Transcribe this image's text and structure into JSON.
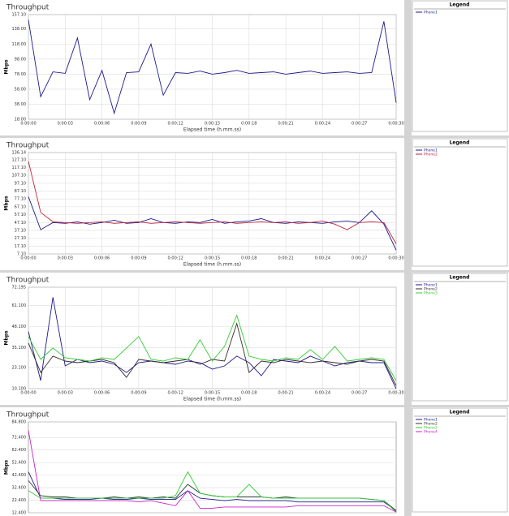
{
  "chart_data": [
    {
      "type": "line",
      "title": "Throughput",
      "ylabel": "Mbps",
      "xlabel": "Elapsed time (h.mm.ss)",
      "legend_title": "Legend",
      "grid": true,
      "x": [
        0,
        1,
        2,
        3,
        4,
        5,
        6,
        7,
        8,
        9,
        10,
        11,
        12,
        13,
        14,
        15,
        16,
        17,
        18,
        19,
        20,
        21,
        22,
        23,
        24,
        25,
        26,
        27,
        28,
        29,
        30
      ],
      "xlim": [
        0,
        30
      ],
      "xticks": [
        {
          "value": 0,
          "label": "0:00:00"
        },
        {
          "value": 3,
          "label": "0:00:03"
        },
        {
          "value": 6,
          "label": "0:00:06"
        },
        {
          "value": 9,
          "label": "0:00:09"
        },
        {
          "value": 12,
          "label": "0:00:12"
        },
        {
          "value": 15,
          "label": "0:00:15"
        },
        {
          "value": 18,
          "label": "0:00:18"
        },
        {
          "value": 21,
          "label": "0:00:21"
        },
        {
          "value": 24,
          "label": "0:00:24"
        },
        {
          "value": 27,
          "label": "0:00:27"
        },
        {
          "value": 30,
          "label": "0:00:30"
        }
      ],
      "ylim": [
        18,
        157.1
      ],
      "yticks": [
        {
          "value": 18,
          "label": "18.00"
        },
        {
          "value": 38,
          "label": "38.00"
        },
        {
          "value": 58,
          "label": "58.00"
        },
        {
          "value": 78,
          "label": "78.00"
        },
        {
          "value": 98,
          "label": "98.00"
        },
        {
          "value": 118,
          "label": "118.00"
        },
        {
          "value": 138,
          "label": "138.00"
        },
        {
          "value": 157.1,
          "label": "157.10"
        }
      ],
      "series": [
        {
          "name": "Phone1",
          "color": "#1a1a8c",
          "values": [
            150,
            48,
            81,
            79,
            126,
            44,
            83,
            26,
            80,
            81,
            118,
            50,
            80,
            79,
            82,
            78,
            80,
            83,
            79,
            80,
            81,
            78,
            80,
            82,
            79,
            80,
            81,
            79,
            80,
            148,
            40
          ]
        }
      ]
    },
    {
      "type": "line",
      "title": "Throughput",
      "ylabel": "Mbps",
      "xlabel": "Elapsed time (h.mm.ss)",
      "legend_title": "Legend",
      "grid": true,
      "x": [
        0,
        1,
        2,
        3,
        4,
        5,
        6,
        7,
        8,
        9,
        10,
        11,
        12,
        13,
        14,
        15,
        16,
        17,
        18,
        19,
        20,
        21,
        22,
        23,
        24,
        25,
        26,
        27,
        28,
        29,
        30
      ],
      "xlim": [
        0,
        30
      ],
      "xticks": [
        {
          "value": 0,
          "label": "0:00:00"
        },
        {
          "value": 3,
          "label": "0:00:03"
        },
        {
          "value": 6,
          "label": "0:00:06"
        },
        {
          "value": 9,
          "label": "0:00:09"
        },
        {
          "value": 12,
          "label": "0:00:12"
        },
        {
          "value": 15,
          "label": "0:00:15"
        },
        {
          "value": 18,
          "label": "0:00:18"
        },
        {
          "value": 21,
          "label": "0:00:21"
        },
        {
          "value": 24,
          "label": "0:00:24"
        },
        {
          "value": 27,
          "label": "0:00:27"
        },
        {
          "value": 30,
          "label": "0:00:30"
        }
      ],
      "ylim": [
        7.1,
        136.14
      ],
      "yticks": [
        {
          "value": 7.1,
          "label": "7.10"
        },
        {
          "value": 17.1,
          "label": "17.10"
        },
        {
          "value": 27.1,
          "label": "27.10"
        },
        {
          "value": 37.1,
          "label": "37.10"
        },
        {
          "value": 47.1,
          "label": "47.10"
        },
        {
          "value": 57.1,
          "label": "57.10"
        },
        {
          "value": 67.1,
          "label": "67.10"
        },
        {
          "value": 77.1,
          "label": "77.10"
        },
        {
          "value": 87.1,
          "label": "87.10"
        },
        {
          "value": 97.1,
          "label": "97.10"
        },
        {
          "value": 107.1,
          "label": "107.10"
        },
        {
          "value": 117.1,
          "label": "117.10"
        },
        {
          "value": 127.1,
          "label": "127.10"
        },
        {
          "value": 136.14,
          "label": "136.14"
        }
      ],
      "series": [
        {
          "name": "Phone1",
          "color": "#1a1a8c",
          "values": [
            80,
            38,
            47,
            46,
            48,
            45,
            47,
            50,
            46,
            47,
            52,
            47,
            46,
            48,
            47,
            51,
            46,
            48,
            49,
            52,
            47,
            46,
            48,
            47,
            46,
            48,
            49,
            47,
            62,
            45,
            12
          ]
        },
        {
          "name": "Phone2",
          "color": "#c0203a",
          "values": [
            125,
            60,
            48,
            47,
            46,
            47,
            48,
            46,
            47,
            48,
            46,
            47,
            48,
            47,
            46,
            47,
            48,
            46,
            47,
            48,
            47,
            48,
            46,
            47,
            49,
            45,
            38,
            47,
            48,
            47,
            20
          ]
        }
      ]
    },
    {
      "type": "line",
      "title": "Throughput",
      "ylabel": "Mbps",
      "xlabel": "Elapsed time (h.mm.ss)",
      "legend_title": "Legend",
      "grid": true,
      "x": [
        0,
        1,
        2,
        3,
        4,
        5,
        6,
        7,
        8,
        9,
        10,
        11,
        12,
        13,
        14,
        15,
        16,
        17,
        18,
        19,
        20,
        21,
        22,
        23,
        24,
        25,
        26,
        27,
        28,
        29,
        30
      ],
      "xlim": [
        0,
        30
      ],
      "xticks": [
        {
          "value": 0,
          "label": "0:00:00"
        },
        {
          "value": 3,
          "label": "0:00:03"
        },
        {
          "value": 6,
          "label": "0:00:06"
        },
        {
          "value": 9,
          "label": "0:00:09"
        },
        {
          "value": 12,
          "label": "0:00:12"
        },
        {
          "value": 15,
          "label": "0:00:15"
        },
        {
          "value": 18,
          "label": "0:00:18"
        },
        {
          "value": 21,
          "label": "0:00:21"
        },
        {
          "value": 24,
          "label": "0:00:24"
        },
        {
          "value": 27,
          "label": "0:00:27"
        },
        {
          "value": 30,
          "label": "0:00:30"
        }
      ],
      "ylim": [
        10.1,
        72.195
      ],
      "yticks": [
        {
          "value": 10.1,
          "label": "10.100"
        },
        {
          "value": 23.1,
          "label": "23.100"
        },
        {
          "value": 35.1,
          "label": "35.100"
        },
        {
          "value": 48.1,
          "label": "48.100"
        },
        {
          "value": 61.1,
          "label": "61.100"
        },
        {
          "value": 72.195,
          "label": "72.195"
        }
      ],
      "series": [
        {
          "name": "Phone1",
          "color": "#1a1a8c",
          "values": [
            45,
            15,
            66,
            24,
            28,
            26,
            27,
            25,
            20,
            26,
            27,
            26,
            25,
            27,
            26,
            22,
            24,
            30,
            26,
            18,
            28,
            27,
            26,
            30,
            27,
            24,
            26,
            27,
            26,
            26,
            10
          ]
        },
        {
          "name": "Phone2",
          "color": "#3a2a2a",
          "values": [
            38,
            20,
            30,
            27,
            26,
            27,
            28,
            26,
            17,
            28,
            27,
            26,
            27,
            28,
            25,
            28,
            27,
            50,
            20,
            27,
            26,
            28,
            27,
            26,
            27,
            26,
            25,
            27,
            28,
            27,
            12
          ]
        },
        {
          "name": "Phone3",
          "color": "#33cc33",
          "values": [
            42,
            28,
            35,
            29,
            28,
            27,
            29,
            28,
            35,
            42,
            28,
            27,
            29,
            28,
            40,
            27,
            36,
            55,
            30,
            28,
            27,
            29,
            28,
            34,
            28,
            36,
            27,
            28,
            29,
            28,
            15
          ]
        }
      ]
    },
    {
      "type": "line",
      "title": "Throughput",
      "ylabel": "Mbps",
      "legend_title": "Legend",
      "grid": true,
      "x": [
        0,
        1,
        2,
        3,
        4,
        5,
        6,
        7,
        8,
        9,
        10,
        11,
        12,
        13,
        14,
        15,
        16,
        17,
        18,
        19,
        20,
        21,
        22,
        23,
        24,
        25,
        26,
        27,
        28,
        29,
        30
      ],
      "xlim": [
        0,
        30
      ],
      "ylim": [
        12.4,
        84.8
      ],
      "yticks": [
        {
          "value": 12.4,
          "label": "12.400"
        },
        {
          "value": 22.4,
          "label": "22.400"
        },
        {
          "value": 32.4,
          "label": "32.400"
        },
        {
          "value": 42.4,
          "label": "42.400"
        },
        {
          "value": 52.4,
          "label": "52.400"
        },
        {
          "value": 62.4,
          "label": "62.400"
        },
        {
          "value": 72.4,
          "label": "72.400"
        },
        {
          "value": 84.8,
          "label": "84.800"
        }
      ],
      "series": [
        {
          "name": "Phone1",
          "color": "#1a1a8c",
          "values": [
            45,
            24,
            24,
            23,
            23,
            23,
            24,
            23,
            23,
            24,
            23,
            23,
            23,
            30,
            24,
            23,
            22,
            23,
            22,
            22,
            22,
            22,
            21,
            21,
            21,
            21,
            21,
            21,
            21,
            21,
            14
          ]
        },
        {
          "name": "Phone2",
          "color": "#2a3a2a",
          "values": [
            38,
            26,
            25,
            25,
            24,
            24,
            24,
            25,
            24,
            25,
            24,
            25,
            24,
            35,
            28,
            26,
            25,
            25,
            25,
            25,
            24,
            25,
            24,
            24,
            24,
            24,
            24,
            24,
            23,
            22,
            14
          ]
        },
        {
          "name": "Phone3",
          "color": "#33cc33",
          "values": [
            30,
            24,
            24,
            24,
            24,
            24,
            24,
            24,
            24,
            24,
            24,
            24,
            26,
            45,
            28,
            26,
            25,
            25,
            35,
            25,
            24,
            24,
            24,
            24,
            24,
            24,
            24,
            24,
            23,
            22,
            13
          ]
        },
        {
          "name": "Phone4",
          "color": "#cc22cc",
          "values": [
            78,
            22,
            22,
            22,
            22,
            22,
            22,
            22,
            22,
            21,
            22,
            20,
            18,
            30,
            16,
            16,
            17,
            17,
            17,
            17,
            17,
            17,
            18,
            18,
            18,
            18,
            18,
            18,
            18,
            18,
            13
          ]
        }
      ]
    }
  ]
}
